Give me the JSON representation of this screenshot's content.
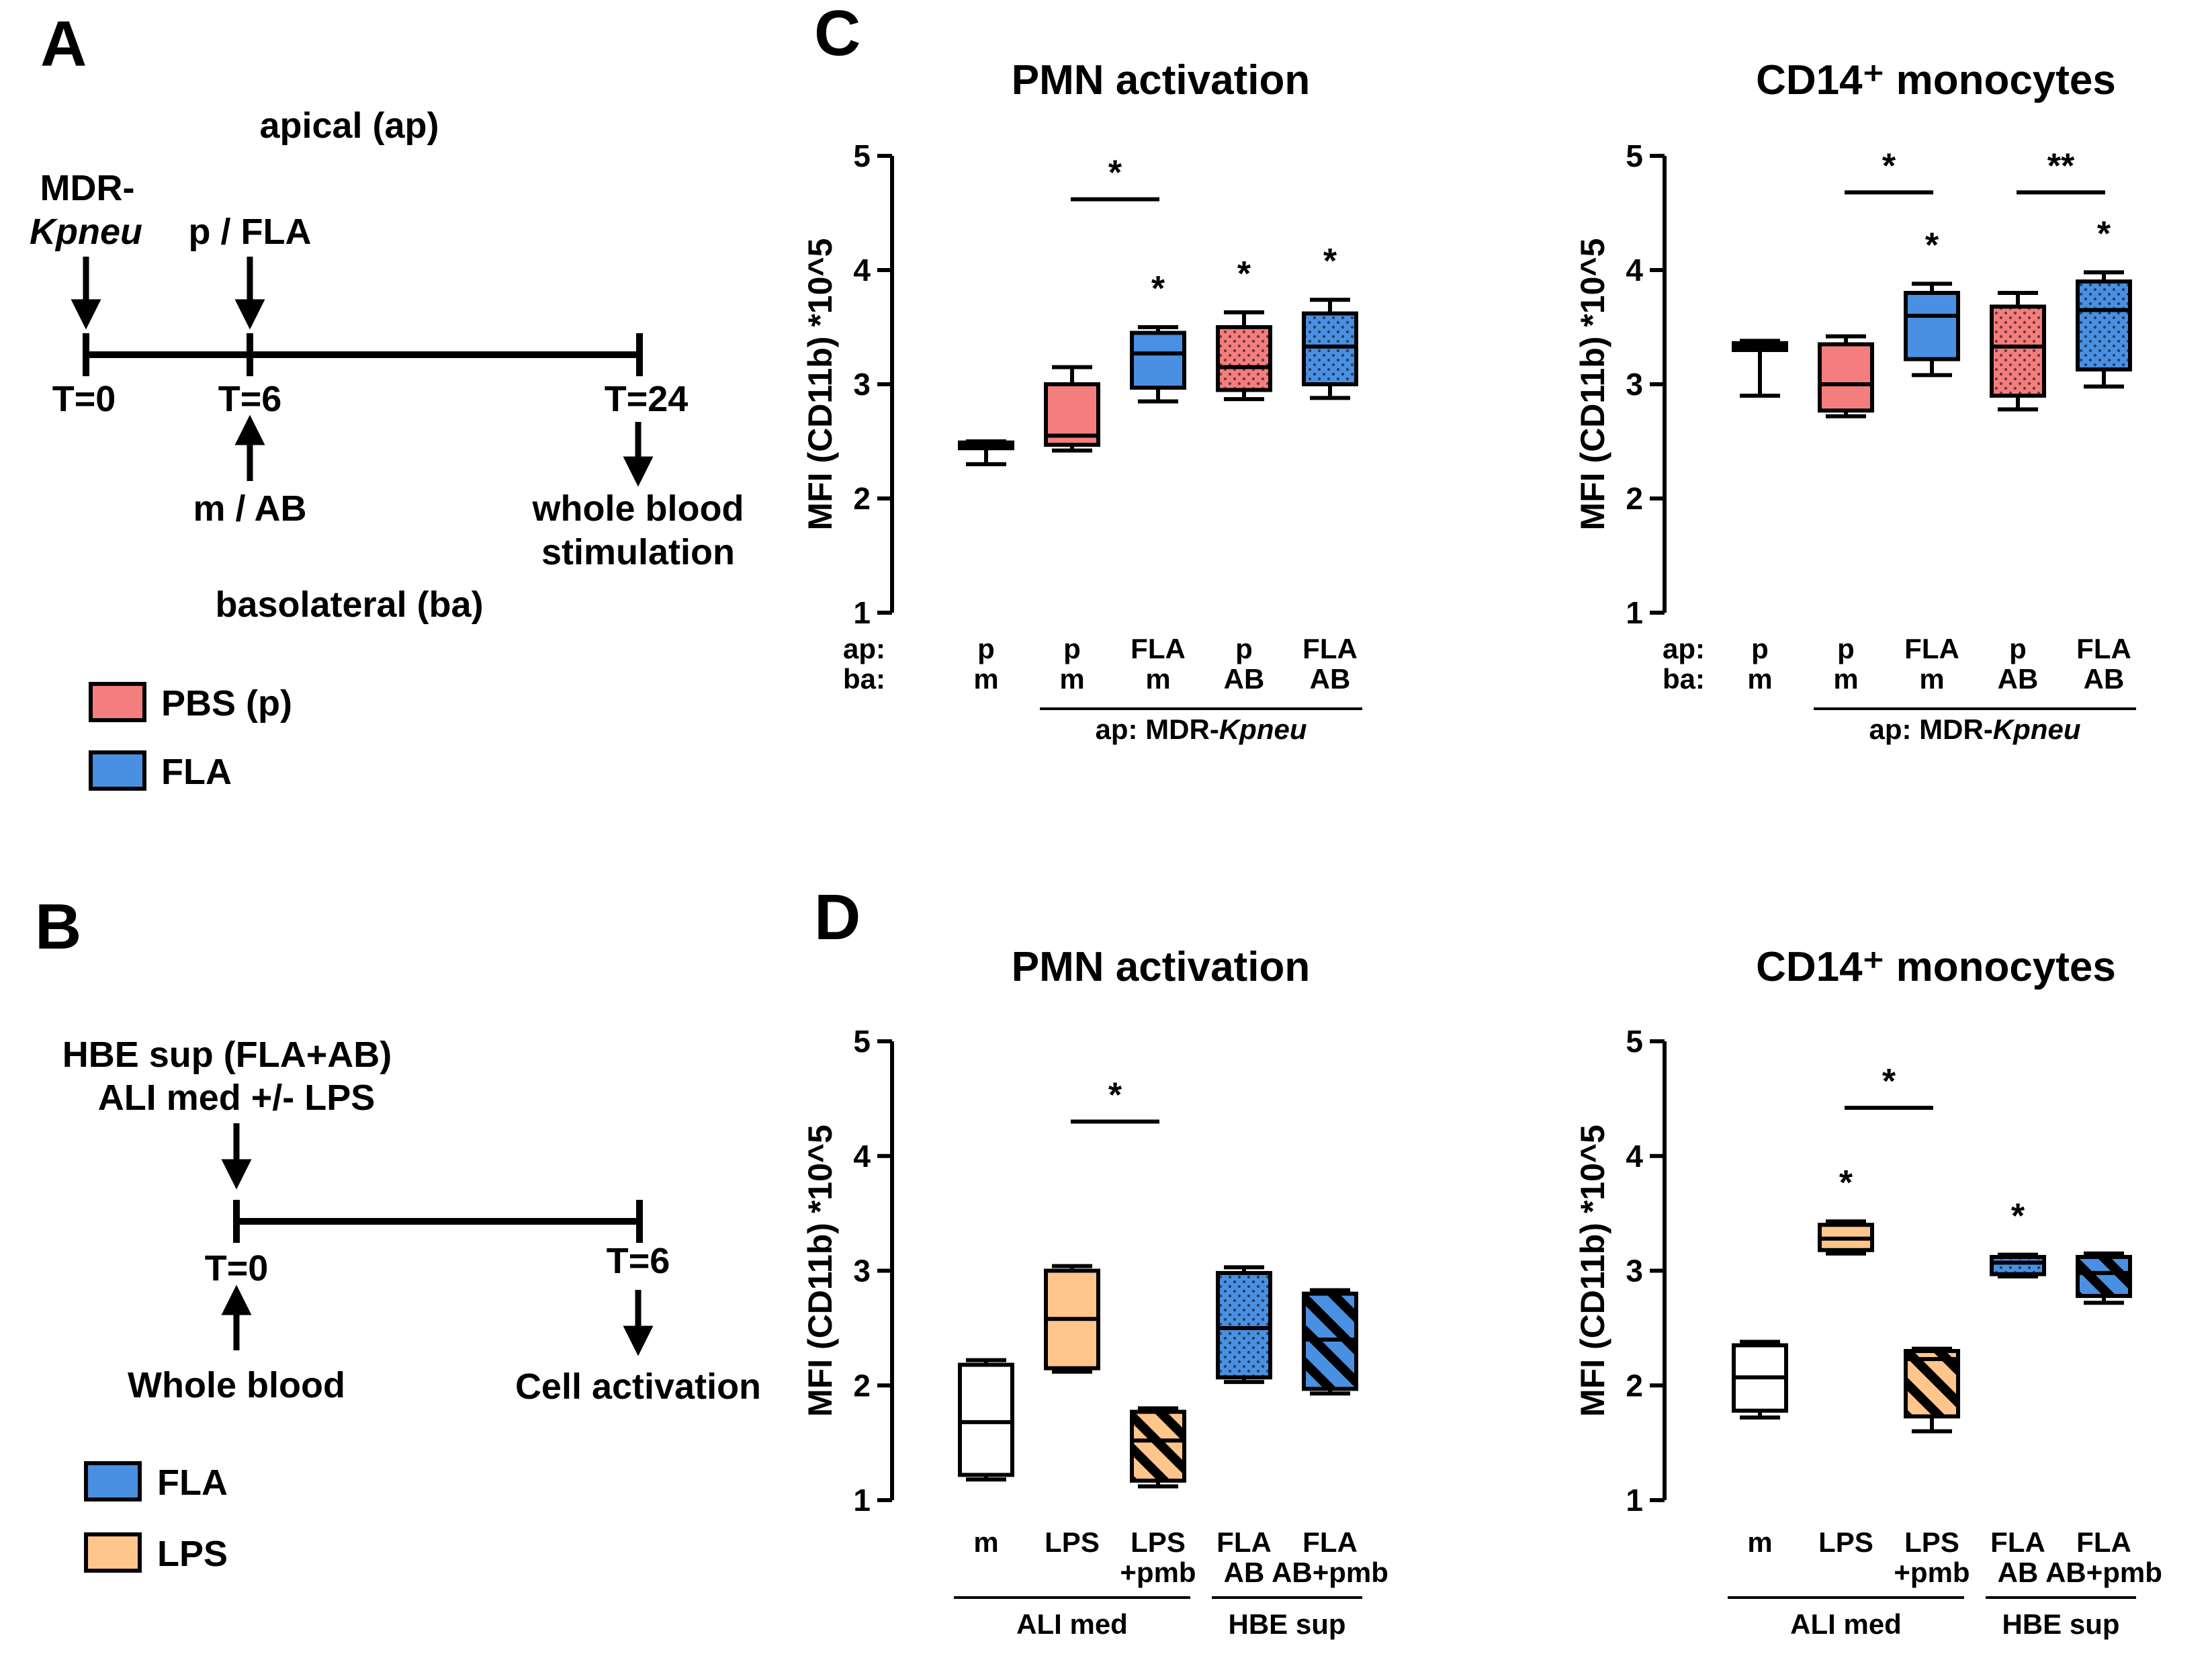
{
  "panels": {
    "A": {
      "letter": "A",
      "apical": "apical (ap)",
      "basolateral": "basolateral (ba)",
      "mdr_line1": "MDR-",
      "mdr_line2": "Kpneu",
      "p_fla": "p / FLA",
      "m_ab": "m / AB",
      "whole_blood_line1": "whole blood",
      "whole_blood_line2": "stimulation",
      "t0": "T=0",
      "t6": "T=6",
      "t24": "T=24",
      "legend": [
        {
          "label": "PBS (p)",
          "color": "#F47E7E"
        },
        {
          "label": "FLA",
          "color": "#4A90E2"
        }
      ]
    },
    "B": {
      "letter": "B",
      "top_line1": "HBE sup (FLA+AB)",
      "top_line2": "ALI med +/- LPS",
      "t0": "T=0",
      "t6": "T=6",
      "whole_blood": "Whole blood",
      "cell_activation": "Cell activation",
      "legend": [
        {
          "label": "FLA",
          "color": "#4A90E2"
        },
        {
          "label": "LPS",
          "color": "#FFC58A"
        }
      ]
    },
    "C": {
      "letter": "C"
    },
    "D": {
      "letter": "D"
    }
  },
  "colors": {
    "pbs": "#F47E7E",
    "fla": "#4A90E2",
    "lps": "#FFC58A",
    "none": "#FFFFFF"
  },
  "chart_data": [
    {
      "id": "C-left",
      "type": "boxplot",
      "title": "PMN activation",
      "ylabel": "MFI (CD11b) *10^5",
      "ylim": [
        1,
        5
      ],
      "yticks": [
        1,
        2,
        3,
        4,
        5
      ],
      "row_labels": [
        "ap:",
        "ba:"
      ],
      "categories": [
        {
          "lines": [
            "p",
            "m"
          ],
          "min": 2.3,
          "q1": 2.44,
          "median": 2.46,
          "q3": 2.49,
          "max": 2.5,
          "color": "none",
          "pattern": "none",
          "star": ""
        },
        {
          "lines": [
            "p",
            "m"
          ],
          "min": 2.42,
          "q1": 2.47,
          "median": 2.55,
          "q3": 3.0,
          "max": 3.15,
          "color": "pbs",
          "pattern": "none",
          "star": ""
        },
        {
          "lines": [
            "FLA",
            "m"
          ],
          "min": 2.85,
          "q1": 2.97,
          "median": 3.27,
          "q3": 3.45,
          "max": 3.5,
          "color": "fla",
          "pattern": "none",
          "star": "*"
        },
        {
          "lines": [
            "p",
            "AB"
          ],
          "min": 2.87,
          "q1": 2.95,
          "median": 3.15,
          "q3": 3.5,
          "max": 3.63,
          "color": "pbs",
          "pattern": "dots",
          "star": "*"
        },
        {
          "lines": [
            "FLA",
            "AB"
          ],
          "min": 2.88,
          "q1": 3.0,
          "median": 3.33,
          "q3": 3.62,
          "max": 3.74,
          "color": "fla",
          "pattern": "dots",
          "star": "*"
        }
      ],
      "brackets": [
        {
          "from": 1,
          "to": 2,
          "y": 4.62,
          "label": "*"
        }
      ],
      "groups": [
        {
          "from": 1,
          "to": 4,
          "label": "ap: MDR-Kpneu",
          "label_plain": "ap: MDR-",
          "label_italic": "Kpneu"
        }
      ]
    },
    {
      "id": "C-right",
      "type": "boxplot",
      "title": "CD14⁺ monocytes",
      "ylabel": "MFI (CD11b) *10^5",
      "ylim": [
        1,
        5
      ],
      "yticks": [
        1,
        2,
        3,
        4,
        5
      ],
      "row_labels": [
        "ap:",
        "ba:"
      ],
      "categories": [
        {
          "lines": [
            "p",
            "m"
          ],
          "min": 2.9,
          "q1": 3.3,
          "median": 3.33,
          "q3": 3.36,
          "max": 3.38,
          "color": "none",
          "pattern": "none",
          "star": ""
        },
        {
          "lines": [
            "p",
            "m"
          ],
          "min": 2.72,
          "q1": 2.77,
          "median": 3.0,
          "q3": 3.35,
          "max": 3.42,
          "color": "pbs",
          "pattern": "none",
          "star": ""
        },
        {
          "lines": [
            "FLA",
            "m"
          ],
          "min": 3.08,
          "q1": 3.22,
          "median": 3.6,
          "q3": 3.8,
          "max": 3.88,
          "color": "fla",
          "pattern": "none",
          "star": "*"
        },
        {
          "lines": [
            "p",
            "AB"
          ],
          "min": 2.78,
          "q1": 2.9,
          "median": 3.33,
          "q3": 3.68,
          "max": 3.8,
          "color": "pbs",
          "pattern": "dots",
          "star": ""
        },
        {
          "lines": [
            "FLA",
            "AB"
          ],
          "min": 2.98,
          "q1": 3.13,
          "median": 3.65,
          "q3": 3.9,
          "max": 3.98,
          "color": "fla",
          "pattern": "dots",
          "star": "*"
        }
      ],
      "brackets": [
        {
          "from": 1,
          "to": 2,
          "y": 4.68,
          "label": "*"
        },
        {
          "from": 3,
          "to": 4,
          "y": 4.68,
          "label": "**"
        }
      ],
      "groups": [
        {
          "from": 1,
          "to": 4,
          "label": "ap: MDR-Kpneu",
          "label_plain": "ap: MDR-",
          "label_italic": "Kpneu"
        }
      ]
    },
    {
      "id": "D-left",
      "type": "boxplot",
      "title": "PMN activation",
      "ylabel": "MFI (CD11b) *10^5",
      "ylim": [
        1,
        5
      ],
      "yticks": [
        1,
        2,
        3,
        4,
        5
      ],
      "row_labels": [],
      "categories": [
        {
          "lines": [
            "m",
            ""
          ],
          "min": 1.18,
          "q1": 1.22,
          "median": 1.68,
          "q3": 2.18,
          "max": 2.22,
          "color": "none",
          "pattern": "none",
          "star": ""
        },
        {
          "lines": [
            "LPS",
            ""
          ],
          "min": 2.12,
          "q1": 2.15,
          "median": 2.58,
          "q3": 3.0,
          "max": 3.04,
          "color": "lps",
          "pattern": "none",
          "star": ""
        },
        {
          "lines": [
            "LPS",
            "+pmb"
          ],
          "min": 1.12,
          "q1": 1.17,
          "median": 1.52,
          "q3": 1.77,
          "max": 1.8,
          "color": "lps",
          "pattern": "hatch",
          "star": ""
        },
        {
          "lines": [
            "FLA",
            "AB"
          ],
          "min": 2.03,
          "q1": 2.07,
          "median": 2.5,
          "q3": 2.98,
          "max": 3.03,
          "color": "fla",
          "pattern": "dots",
          "star": ""
        },
        {
          "lines": [
            "FLA",
            "AB+pmb"
          ],
          "min": 1.93,
          "q1": 1.97,
          "median": 2.4,
          "q3": 2.8,
          "max": 2.83,
          "color": "fla",
          "pattern": "hatch",
          "star": ""
        }
      ],
      "brackets": [
        {
          "from": 1,
          "to": 2,
          "y": 4.3,
          "label": "*"
        }
      ],
      "groups": [
        {
          "from": 0,
          "to": 2,
          "label": "ALI med",
          "label_plain": "ALI med",
          "label_italic": ""
        },
        {
          "from": 3,
          "to": 4,
          "label": "HBE sup",
          "label_plain": "HBE sup",
          "label_italic": ""
        }
      ]
    },
    {
      "id": "D-right",
      "type": "boxplot",
      "title": "CD14⁺  monocytes",
      "ylabel": "MFI (CD11b) *10^5",
      "ylim": [
        1,
        5
      ],
      "yticks": [
        1,
        2,
        3,
        4,
        5
      ],
      "row_labels": [],
      "categories": [
        {
          "lines": [
            "m",
            ""
          ],
          "min": 1.72,
          "q1": 1.78,
          "median": 2.07,
          "q3": 2.35,
          "max": 2.38,
          "color": "none",
          "pattern": "none",
          "star": ""
        },
        {
          "lines": [
            "LPS",
            ""
          ],
          "min": 3.15,
          "q1": 3.18,
          "median": 3.28,
          "q3": 3.4,
          "max": 3.43,
          "color": "lps",
          "pattern": "none",
          "star": "*"
        },
        {
          "lines": [
            "LPS",
            "+pmb"
          ],
          "min": 1.6,
          "q1": 1.73,
          "median": 2.23,
          "q3": 2.3,
          "max": 2.32,
          "color": "lps",
          "pattern": "hatch",
          "star": ""
        },
        {
          "lines": [
            "FLA",
            "AB"
          ],
          "min": 2.95,
          "q1": 2.97,
          "median": 3.07,
          "q3": 3.12,
          "max": 3.14,
          "color": "fla",
          "pattern": "dots",
          "star": "*"
        },
        {
          "lines": [
            "FLA",
            "AB+pmb"
          ],
          "min": 2.72,
          "q1": 2.78,
          "median": 2.98,
          "q3": 3.12,
          "max": 3.15,
          "color": "fla",
          "pattern": "hatch",
          "star": ""
        }
      ],
      "brackets": [
        {
          "from": 1,
          "to": 2,
          "y": 4.42,
          "label": "*"
        }
      ],
      "groups": [
        {
          "from": 0,
          "to": 2,
          "label": "ALI med",
          "label_plain": "ALI med",
          "label_italic": ""
        },
        {
          "from": 3,
          "to": 4,
          "label": "HBE sup",
          "label_plain": "HBE sup",
          "label_italic": ""
        }
      ]
    }
  ]
}
